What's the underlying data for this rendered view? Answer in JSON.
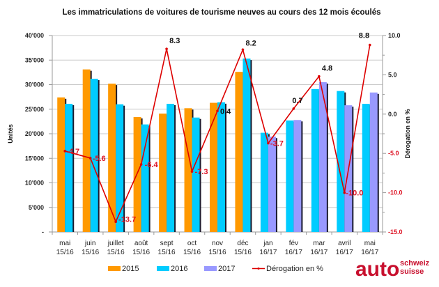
{
  "chart_data": {
    "type": "bar",
    "combo": "bar+line (dual axis)",
    "title": "Les immatriculations de voitures de tourisme neuves au cours des 12 mois écoulés",
    "ylabel": "Unités",
    "y2label": "Dérogation en %",
    "ylim": [
      0,
      40000
    ],
    "y2lim": [
      -15.0,
      10.0
    ],
    "yticks": [
      "-",
      "5'000",
      "10'000",
      "15'000",
      "20'000",
      "25'000",
      "30'000",
      "35'000",
      "40'000"
    ],
    "ytick_values": [
      0,
      5000,
      10000,
      15000,
      20000,
      25000,
      30000,
      35000,
      40000
    ],
    "y2ticks": [
      "-15.0",
      "-10.0",
      "-5.0",
      "0.0",
      "5.0",
      "10.0"
    ],
    "y2tick_values": [
      -15,
      -10,
      -5,
      0,
      5,
      10
    ],
    "grid": true,
    "legend_position": "bottom",
    "categories": [
      [
        "mai",
        "15/16"
      ],
      [
        "juin",
        "15/16"
      ],
      [
        "juillet",
        "15/16"
      ],
      [
        "août",
        "15/16"
      ],
      [
        "sept",
        "15/16"
      ],
      [
        "oct",
        "15/16"
      ],
      [
        "nov",
        "15/16"
      ],
      [
        "déc",
        "15/16"
      ],
      [
        "jan",
        "16/17"
      ],
      [
        "fév",
        "16/17"
      ],
      [
        "mar",
        "16/17"
      ],
      [
        "avril",
        "16/17"
      ],
      [
        "mai",
        "16/17"
      ]
    ],
    "series": [
      {
        "name": "2015",
        "kind": "bar",
        "color": "#FF9900",
        "values": [
          27400,
          33100,
          30200,
          23400,
          24100,
          25200,
          26300,
          32600,
          null,
          null,
          null,
          null,
          null
        ]
      },
      {
        "name": "2016",
        "kind": "bar",
        "color": "#00CCFF",
        "values": [
          26100,
          31200,
          26000,
          21900,
          26100,
          23300,
          26400,
          35300,
          20200,
          22700,
          29100,
          28700,
          26100
        ]
      },
      {
        "name": "2017",
        "kind": "bar",
        "color": "#9999FF",
        "values": [
          null,
          null,
          null,
          null,
          null,
          null,
          null,
          null,
          19400,
          22800,
          30500,
          25800,
          28400
        ]
      },
      {
        "name": "Dérogation en %",
        "kind": "line",
        "axis": "right",
        "color": "#DD0000",
        "values": [
          -4.7,
          -5.6,
          -13.7,
          -6.4,
          8.3,
          -7.3,
          0.4,
          8.2,
          -3.7,
          0.7,
          4.8,
          -10.0,
          8.8
        ],
        "labels": [
          "-4.7",
          "-5.6",
          "-13.7",
          "-6.4",
          "8.3",
          "-7.3",
          "0.4",
          "8.2",
          "-3.7",
          "0.7",
          "4.8",
          "-10.0",
          "8.8"
        ]
      }
    ]
  },
  "colors": {
    "negative_label": "#DD1122",
    "positive_label": "#111111",
    "gridline": "#C8C8C8",
    "logo": "#C8102E"
  },
  "legend": [
    {
      "label": "2015",
      "swatch": "box",
      "color": "#FF9900"
    },
    {
      "label": "2016",
      "swatch": "box",
      "color": "#00CCFF"
    },
    {
      "label": "2017",
      "swatch": "box",
      "color": "#9999FF"
    },
    {
      "label": "Dérogation en %",
      "swatch": "line",
      "color": "#DD0000"
    }
  ],
  "logo": {
    "main": "auto",
    "line1": "schweiz",
    "line2": "suisse"
  }
}
